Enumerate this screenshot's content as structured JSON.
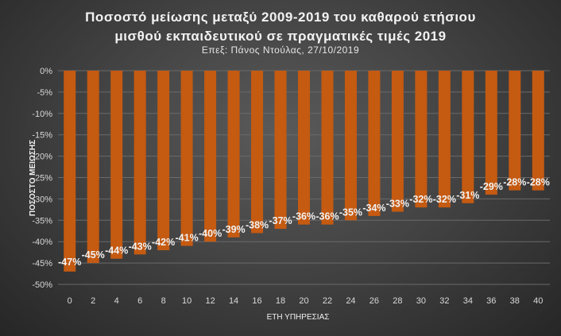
{
  "chart_data": {
    "type": "bar",
    "title_line1": "Ποσοστό μείωσης μεταξύ 2009-2019 του καθαρού ετήσιου",
    "title_line2": "μισθού εκπαιδευτικού σε πραγματικές τιμές 2019",
    "subtitle": "Επεξ: Πάνος Ντούλας, 27/10/2019",
    "xlabel": "ΕΤΗ ΥΠΗΡΕΣΙΑΣ",
    "ylabel": "ΠΟΣΟΣΤΟ ΜΕΙΩΣΗΣ",
    "categories": [
      "0",
      "2",
      "4",
      "6",
      "8",
      "10",
      "12",
      "14",
      "16",
      "18",
      "20",
      "22",
      "24",
      "26",
      "28",
      "30",
      "32",
      "34",
      "36",
      "38",
      "40"
    ],
    "values": [
      -47,
      -45,
      -44,
      -43,
      -42,
      -41,
      -40,
      -39,
      -38,
      -37,
      -36,
      -36,
      -35,
      -34,
      -33,
      -32,
      -32,
      -31,
      -29,
      -28,
      -28
    ],
    "data_labels": [
      "-47%",
      "-45%",
      "-44%",
      "-43%",
      "-42%",
      "-41%",
      "-40%",
      "-39%",
      "-38%",
      "-37%",
      "-36%",
      "-36%",
      "-35%",
      "-34%",
      "-33%",
      "-32%",
      "-32%",
      "-31%",
      "-29%",
      "-28%",
      "-28%"
    ],
    "y_ticks": [
      "0%",
      "-5%",
      "-10%",
      "-15%",
      "-20%",
      "-25%",
      "-30%",
      "-35%",
      "-40%",
      "-45%",
      "-50%"
    ],
    "ylim": [
      -50,
      0
    ],
    "grid": true,
    "bar_color": "#c55a11"
  }
}
